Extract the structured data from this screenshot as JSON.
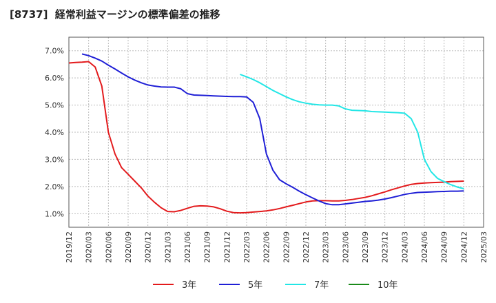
{
  "chart_data": {
    "type": "line",
    "title": "[8737]  経常利益マージンの標準偏差の推移",
    "xlabel": "",
    "ylabel": "",
    "ylim": [
      0.5,
      7.5
    ],
    "y_ticks": [
      1.0,
      2.0,
      3.0,
      4.0,
      5.0,
      6.0,
      7.0
    ],
    "y_tick_labels": [
      "1.0%",
      "2.0%",
      "3.0%",
      "4.0%",
      "5.0%",
      "6.0%",
      "7.0%"
    ],
    "x_tick_labels": [
      "2019/12",
      "2020/03",
      "2020/06",
      "2020/09",
      "2020/12",
      "2021/03",
      "2021/06",
      "2021/09",
      "2021/12",
      "2022/03",
      "2022/06",
      "2022/09",
      "2022/12",
      "2023/03",
      "2023/06",
      "2023/09",
      "2023/12",
      "2024/03",
      "2024/06",
      "2024/09",
      "2024/12",
      "2025/03"
    ],
    "grid": true,
    "legend_position": "bottom",
    "series": [
      {
        "name": "3年",
        "color": "#e31a1c",
        "points": [
          [
            "2019/12",
            6.55
          ],
          [
            "2020/01",
            6.57
          ],
          [
            "2020/02",
            6.58
          ],
          [
            "2020/03",
            6.6
          ],
          [
            "2020/04",
            6.4
          ],
          [
            "2020/05",
            5.7
          ],
          [
            "2020/06",
            4.0
          ],
          [
            "2020/07",
            3.2
          ],
          [
            "2020/08",
            2.7
          ],
          [
            "2020/09",
            2.45
          ],
          [
            "2020/10",
            2.2
          ],
          [
            "2020/11",
            1.95
          ],
          [
            "2020/12",
            1.65
          ],
          [
            "2021/01",
            1.42
          ],
          [
            "2021/02",
            1.22
          ],
          [
            "2021/03",
            1.08
          ],
          [
            "2021/04",
            1.07
          ],
          [
            "2021/05",
            1.12
          ],
          [
            "2021/06",
            1.2
          ],
          [
            "2021/07",
            1.27
          ],
          [
            "2021/08",
            1.29
          ],
          [
            "2021/09",
            1.28
          ],
          [
            "2021/10",
            1.25
          ],
          [
            "2021/11",
            1.18
          ],
          [
            "2021/12",
            1.09
          ],
          [
            "2022/01",
            1.04
          ],
          [
            "2022/02",
            1.03
          ],
          [
            "2022/03",
            1.04
          ],
          [
            "2022/04",
            1.06
          ],
          [
            "2022/05",
            1.08
          ],
          [
            "2022/06",
            1.1
          ],
          [
            "2022/07",
            1.14
          ],
          [
            "2022/08",
            1.19
          ],
          [
            "2022/09",
            1.25
          ],
          [
            "2022/10",
            1.31
          ],
          [
            "2022/11",
            1.37
          ],
          [
            "2022/12",
            1.43
          ],
          [
            "2023/01",
            1.47
          ],
          [
            "2023/02",
            1.48
          ],
          [
            "2023/03",
            1.48
          ],
          [
            "2023/04",
            1.47
          ],
          [
            "2023/05",
            1.47
          ],
          [
            "2023/06",
            1.49
          ],
          [
            "2023/07",
            1.52
          ],
          [
            "2023/08",
            1.56
          ],
          [
            "2023/09",
            1.6
          ],
          [
            "2023/10",
            1.66
          ],
          [
            "2023/11",
            1.73
          ],
          [
            "2023/12",
            1.8
          ],
          [
            "2024/01",
            1.88
          ],
          [
            "2024/02",
            1.95
          ],
          [
            "2024/03",
            2.02
          ],
          [
            "2024/04",
            2.08
          ],
          [
            "2024/05",
            2.11
          ],
          [
            "2024/06",
            2.13
          ],
          [
            "2024/07",
            2.14
          ],
          [
            "2024/08",
            2.15
          ],
          [
            "2024/09",
            2.16
          ],
          [
            "2024/10",
            2.18
          ],
          [
            "2024/11",
            2.19
          ],
          [
            "2024/12",
            2.2
          ]
        ]
      },
      {
        "name": "5年",
        "color": "#1f1fd6",
        "points": [
          [
            "2020/02",
            6.88
          ],
          [
            "2020/03",
            6.82
          ],
          [
            "2020/04",
            6.73
          ],
          [
            "2020/05",
            6.62
          ],
          [
            "2020/06",
            6.47
          ],
          [
            "2020/07",
            6.33
          ],
          [
            "2020/08",
            6.18
          ],
          [
            "2020/09",
            6.04
          ],
          [
            "2020/10",
            5.92
          ],
          [
            "2020/11",
            5.82
          ],
          [
            "2020/12",
            5.74
          ],
          [
            "2021/01",
            5.7
          ],
          [
            "2021/02",
            5.67
          ],
          [
            "2021/03",
            5.66
          ],
          [
            "2021/04",
            5.66
          ],
          [
            "2021/05",
            5.6
          ],
          [
            "2021/06",
            5.42
          ],
          [
            "2021/07",
            5.37
          ],
          [
            "2021/08",
            5.36
          ],
          [
            "2021/09",
            5.35
          ],
          [
            "2021/10",
            5.34
          ],
          [
            "2021/11",
            5.33
          ],
          [
            "2021/12",
            5.32
          ],
          [
            "2022/01",
            5.31
          ],
          [
            "2022/02",
            5.31
          ],
          [
            "2022/03",
            5.3
          ],
          [
            "2022/04",
            5.1
          ],
          [
            "2022/05",
            4.5
          ],
          [
            "2022/06",
            3.2
          ],
          [
            "2022/07",
            2.6
          ],
          [
            "2022/08",
            2.25
          ],
          [
            "2022/09",
            2.1
          ],
          [
            "2022/10",
            1.97
          ],
          [
            "2022/11",
            1.83
          ],
          [
            "2022/12",
            1.7
          ],
          [
            "2023/01",
            1.58
          ],
          [
            "2023/02",
            1.47
          ],
          [
            "2023/03",
            1.37
          ],
          [
            "2023/04",
            1.33
          ],
          [
            "2023/05",
            1.33
          ],
          [
            "2023/06",
            1.36
          ],
          [
            "2023/07",
            1.39
          ],
          [
            "2023/08",
            1.42
          ],
          [
            "2023/09",
            1.45
          ],
          [
            "2023/10",
            1.47
          ],
          [
            "2023/11",
            1.5
          ],
          [
            "2023/12",
            1.54
          ],
          [
            "2024/01",
            1.59
          ],
          [
            "2024/02",
            1.65
          ],
          [
            "2024/03",
            1.71
          ],
          [
            "2024/04",
            1.75
          ],
          [
            "2024/05",
            1.78
          ],
          [
            "2024/06",
            1.79
          ],
          [
            "2024/07",
            1.8
          ],
          [
            "2024/08",
            1.81
          ],
          [
            "2024/09",
            1.82
          ],
          [
            "2024/10",
            1.83
          ],
          [
            "2024/11",
            1.83
          ],
          [
            "2024/12",
            1.84
          ]
        ]
      },
      {
        "name": "7年",
        "color": "#22e6e6",
        "points": [
          [
            "2022/02",
            6.13
          ],
          [
            "2022/03",
            6.04
          ],
          [
            "2022/04",
            5.94
          ],
          [
            "2022/05",
            5.82
          ],
          [
            "2022/06",
            5.68
          ],
          [
            "2022/07",
            5.54
          ],
          [
            "2022/08",
            5.42
          ],
          [
            "2022/09",
            5.3
          ],
          [
            "2022/10",
            5.2
          ],
          [
            "2022/11",
            5.12
          ],
          [
            "2022/12",
            5.07
          ],
          [
            "2023/01",
            5.03
          ],
          [
            "2023/02",
            5.01
          ],
          [
            "2023/03",
            5.0
          ],
          [
            "2023/04",
            5.0
          ],
          [
            "2023/05",
            4.97
          ],
          [
            "2023/06",
            4.86
          ],
          [
            "2023/07",
            4.81
          ],
          [
            "2023/08",
            4.8
          ],
          [
            "2023/09",
            4.79
          ],
          [
            "2023/10",
            4.76
          ],
          [
            "2023/11",
            4.75
          ],
          [
            "2023/12",
            4.74
          ],
          [
            "2024/01",
            4.73
          ],
          [
            "2024/02",
            4.72
          ],
          [
            "2024/03",
            4.7
          ],
          [
            "2024/04",
            4.5
          ],
          [
            "2024/05",
            4.0
          ],
          [
            "2024/06",
            3.0
          ],
          [
            "2024/07",
            2.55
          ],
          [
            "2024/08",
            2.3
          ],
          [
            "2024/09",
            2.18
          ],
          [
            "2024/10",
            2.07
          ],
          [
            "2024/11",
            1.98
          ],
          [
            "2024/12",
            1.92
          ]
        ]
      },
      {
        "name": "10年",
        "color": "#1a8a1a",
        "points": []
      }
    ]
  }
}
